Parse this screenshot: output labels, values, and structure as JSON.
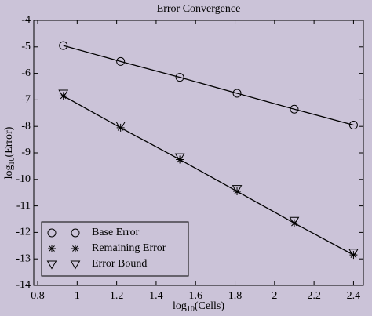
{
  "chart_data": {
    "type": "line",
    "title": "Error Convergence",
    "xlabel_parts": [
      "log",
      "10",
      "(Cells)"
    ],
    "ylabel_parts": [
      "log",
      "10",
      "(Error)"
    ],
    "xlim": [
      0.78,
      2.45
    ],
    "ylim": [
      -14,
      -4
    ],
    "xticks": [
      0.8,
      1,
      1.2,
      1.4,
      1.6,
      1.8,
      2,
      2.2,
      2.4
    ],
    "yticks": [
      -14,
      -13,
      -12,
      -11,
      -10,
      -9,
      -8,
      -7,
      -6,
      -5,
      -4
    ],
    "legend": "lower left",
    "series": [
      {
        "name": "Base Error",
        "marker": "circle",
        "line": true,
        "color": "#000000",
        "x": [
          0.93,
          1.22,
          1.52,
          1.81,
          2.1,
          2.4
        ],
        "values": [
          -4.95,
          -5.55,
          -6.15,
          -6.75,
          -7.35,
          -7.95
        ]
      },
      {
        "name": "Remaining Error",
        "marker": "asterisk",
        "line": true,
        "color": "#000000",
        "x": [
          0.93,
          1.22,
          1.52,
          1.81,
          2.1,
          2.4
        ],
        "values": [
          -6.85,
          -8.05,
          -9.25,
          -10.45,
          -11.65,
          -12.85
        ]
      },
      {
        "name": "Error Bound",
        "marker": "triangle-down",
        "line": false,
        "color": "#000000",
        "x": [
          0.93,
          1.22,
          1.52,
          1.81,
          2.1,
          2.4
        ],
        "values": [
          -6.75,
          -7.95,
          -9.15,
          -10.35,
          -11.55,
          -12.75
        ]
      }
    ]
  }
}
